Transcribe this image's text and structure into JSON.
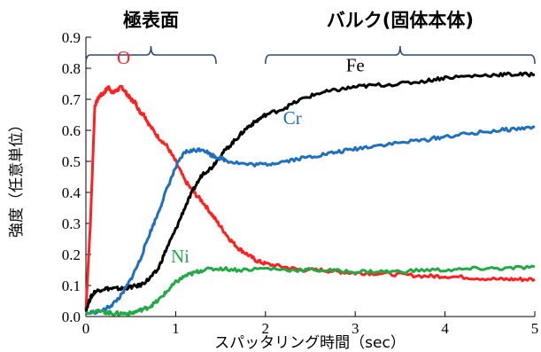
{
  "chart_data": {
    "type": "line",
    "title": "",
    "xlabel": "スパッタリング時間（sec）",
    "ylabel": "強度（任意単位）",
    "xlim": [
      0,
      5
    ],
    "ylim": [
      0,
      0.9
    ],
    "x_ticks": [
      "0",
      "1",
      "2",
      "3",
      "4",
      "5"
    ],
    "y_ticks": [
      "0.0",
      "0.1",
      "0.2",
      "0.3",
      "0.4",
      "0.5",
      "0.6",
      "0.7",
      "0.8",
      "0.9"
    ],
    "grid": false,
    "legend": "none",
    "regions": [
      {
        "label": "極表面",
        "x_start": 0,
        "x_end": 1.45
      },
      {
        "label": "バルク(固体本体)",
        "x_start": 2.0,
        "x_end": 5.0
      }
    ],
    "series": [
      {
        "name": "O",
        "color": "#ff2020",
        "label_at": [
          0.42,
          0.815
        ],
        "points": [
          [
            0,
            0.02
          ],
          [
            0.05,
            0.3
          ],
          [
            0.1,
            0.68
          ],
          [
            0.15,
            0.71
          ],
          [
            0.2,
            0.72
          ],
          [
            0.25,
            0.74
          ],
          [
            0.3,
            0.72
          ],
          [
            0.35,
            0.73
          ],
          [
            0.4,
            0.74
          ],
          [
            0.45,
            0.72
          ],
          [
            0.5,
            0.7
          ],
          [
            0.55,
            0.69
          ],
          [
            0.6,
            0.66
          ],
          [
            0.65,
            0.65
          ],
          [
            0.7,
            0.62
          ],
          [
            0.8,
            0.58
          ],
          [
            0.9,
            0.55
          ],
          [
            1.0,
            0.5
          ],
          [
            1.1,
            0.44
          ],
          [
            1.2,
            0.4
          ],
          [
            1.3,
            0.37
          ],
          [
            1.4,
            0.33
          ],
          [
            1.5,
            0.29
          ],
          [
            1.6,
            0.25
          ],
          [
            1.7,
            0.22
          ],
          [
            1.8,
            0.2
          ],
          [
            1.9,
            0.18
          ],
          [
            2.0,
            0.17
          ],
          [
            2.2,
            0.16
          ],
          [
            2.4,
            0.15
          ],
          [
            2.6,
            0.15
          ],
          [
            2.8,
            0.145
          ],
          [
            3.0,
            0.14
          ],
          [
            3.2,
            0.14
          ],
          [
            3.5,
            0.135
          ],
          [
            3.8,
            0.13
          ],
          [
            4.0,
            0.13
          ],
          [
            4.3,
            0.125
          ],
          [
            4.6,
            0.12
          ],
          [
            4.8,
            0.12
          ],
          [
            5.0,
            0.12
          ]
        ]
      },
      {
        "name": "Fe",
        "color": "#000000",
        "label_at": [
          3.0,
          0.79
        ],
        "points": [
          [
            0,
            0.02
          ],
          [
            0.05,
            0.06
          ],
          [
            0.1,
            0.08
          ],
          [
            0.2,
            0.09
          ],
          [
            0.3,
            0.09
          ],
          [
            0.4,
            0.09
          ],
          [
            0.5,
            0.095
          ],
          [
            0.6,
            0.1
          ],
          [
            0.7,
            0.12
          ],
          [
            0.8,
            0.15
          ],
          [
            0.9,
            0.22
          ],
          [
            1.0,
            0.28
          ],
          [
            1.1,
            0.35
          ],
          [
            1.2,
            0.41
          ],
          [
            1.3,
            0.46
          ],
          [
            1.4,
            0.48
          ],
          [
            1.5,
            0.52
          ],
          [
            1.6,
            0.55
          ],
          [
            1.7,
            0.58
          ],
          [
            1.8,
            0.61
          ],
          [
            1.9,
            0.63
          ],
          [
            2.0,
            0.65
          ],
          [
            2.2,
            0.67
          ],
          [
            2.4,
            0.7
          ],
          [
            2.6,
            0.72
          ],
          [
            2.8,
            0.73
          ],
          [
            3.0,
            0.74
          ],
          [
            3.2,
            0.745
          ],
          [
            3.5,
            0.75
          ],
          [
            3.8,
            0.76
          ],
          [
            4.0,
            0.77
          ],
          [
            4.3,
            0.775
          ],
          [
            4.6,
            0.78
          ],
          [
            4.8,
            0.78
          ],
          [
            5.0,
            0.78
          ]
        ]
      },
      {
        "name": "Cr",
        "color": "#1f6fbf",
        "label_at": [
          2.3,
          0.62
        ],
        "points": [
          [
            0,
            0.01
          ],
          [
            0.2,
            0.02
          ],
          [
            0.3,
            0.04
          ],
          [
            0.4,
            0.07
          ],
          [
            0.5,
            0.12
          ],
          [
            0.6,
            0.18
          ],
          [
            0.7,
            0.26
          ],
          [
            0.8,
            0.33
          ],
          [
            0.9,
            0.41
          ],
          [
            1.0,
            0.48
          ],
          [
            1.1,
            0.53
          ],
          [
            1.2,
            0.535
          ],
          [
            1.3,
            0.54
          ],
          [
            1.4,
            0.52
          ],
          [
            1.5,
            0.51
          ],
          [
            1.6,
            0.5
          ],
          [
            1.8,
            0.49
          ],
          [
            2.0,
            0.49
          ],
          [
            2.2,
            0.5
          ],
          [
            2.4,
            0.51
          ],
          [
            2.6,
            0.52
          ],
          [
            2.8,
            0.53
          ],
          [
            3.0,
            0.54
          ],
          [
            3.2,
            0.55
          ],
          [
            3.5,
            0.56
          ],
          [
            3.8,
            0.57
          ],
          [
            4.0,
            0.58
          ],
          [
            4.3,
            0.59
          ],
          [
            4.6,
            0.6
          ],
          [
            4.8,
            0.605
          ],
          [
            5.0,
            0.61
          ]
        ]
      },
      {
        "name": "Ni",
        "color": "#22aa44",
        "label_at": [
          1.05,
          0.175
        ],
        "points": [
          [
            0,
            0.015
          ],
          [
            0.2,
            0.015
          ],
          [
            0.3,
            0.01
          ],
          [
            0.4,
            0.01
          ],
          [
            0.5,
            0.01
          ],
          [
            0.6,
            0.02
          ],
          [
            0.7,
            0.03
          ],
          [
            0.8,
            0.05
          ],
          [
            0.9,
            0.08
          ],
          [
            1.0,
            0.11
          ],
          [
            1.1,
            0.13
          ],
          [
            1.2,
            0.14
          ],
          [
            1.3,
            0.15
          ],
          [
            1.5,
            0.155
          ],
          [
            1.7,
            0.15
          ],
          [
            2.0,
            0.155
          ],
          [
            2.3,
            0.15
          ],
          [
            2.6,
            0.15
          ],
          [
            2.9,
            0.145
          ],
          [
            3.2,
            0.145
          ],
          [
            3.5,
            0.145
          ],
          [
            3.8,
            0.15
          ],
          [
            4.1,
            0.15
          ],
          [
            4.4,
            0.155
          ],
          [
            4.7,
            0.155
          ],
          [
            5.0,
            0.16
          ]
        ]
      }
    ]
  }
}
